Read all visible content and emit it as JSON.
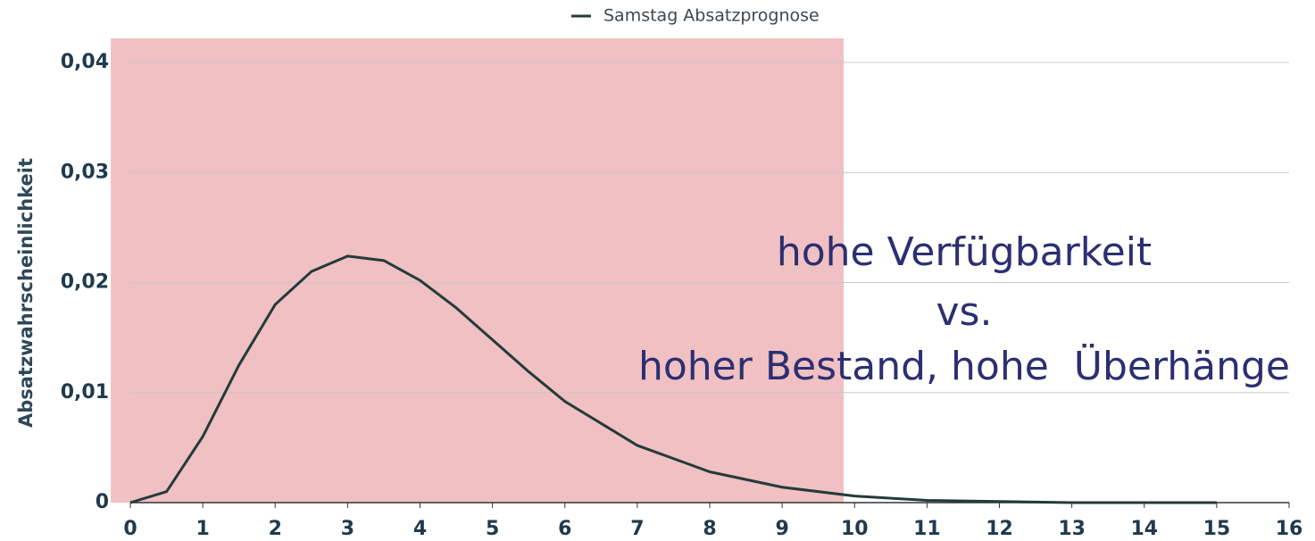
{
  "chart_data": {
    "type": "line",
    "y_label": "Absatzwahrscheinlichkeit",
    "x": [
      0,
      0.5,
      1,
      1.5,
      2,
      2.5,
      3,
      3.5,
      4,
      4.5,
      5,
      5.5,
      6,
      7,
      8,
      9,
      10,
      11,
      12,
      13,
      14,
      15
    ],
    "series": [
      {
        "name": "Samstag Absatzprognose",
        "color": "#243a3b",
        "values": [
          0,
          0.001,
          0.006,
          0.0125,
          0.018,
          0.021,
          0.0224,
          0.022,
          0.0202,
          0.0177,
          0.0148,
          0.0119,
          0.0092,
          0.0052,
          0.0028,
          0.0014,
          0.0006,
          0.0002,
          0.0001,
          0,
          0,
          0
        ]
      }
    ],
    "xlim": [
      0,
      16
    ],
    "xticks": [
      0,
      1,
      2,
      3,
      4,
      5,
      6,
      7,
      8,
      9,
      10,
      11,
      12,
      13,
      14,
      15,
      16
    ],
    "ylim": [
      0,
      0.04
    ],
    "yticks": [
      0,
      {
        "value": 0.01,
        "label": "0,01"
      },
      {
        "value": 0.02,
        "label": "0,02"
      },
      {
        "value": 0.03,
        "label": "0,03"
      },
      {
        "value": 0.04,
        "label": "0,04"
      }
    ],
    "grid": true,
    "legend": "top",
    "highlight": {
      "xlim": [
        -0.27,
        9.85
      ],
      "ylim": [
        0,
        0.0422
      ],
      "color": "#e79a9d"
    },
    "annotation": [
      "hohe Verfügbarkeit",
      "vs.",
      "hoher Bestand, hohe  Überhänge"
    ],
    "annotation_color": "#2b2f72"
  }
}
